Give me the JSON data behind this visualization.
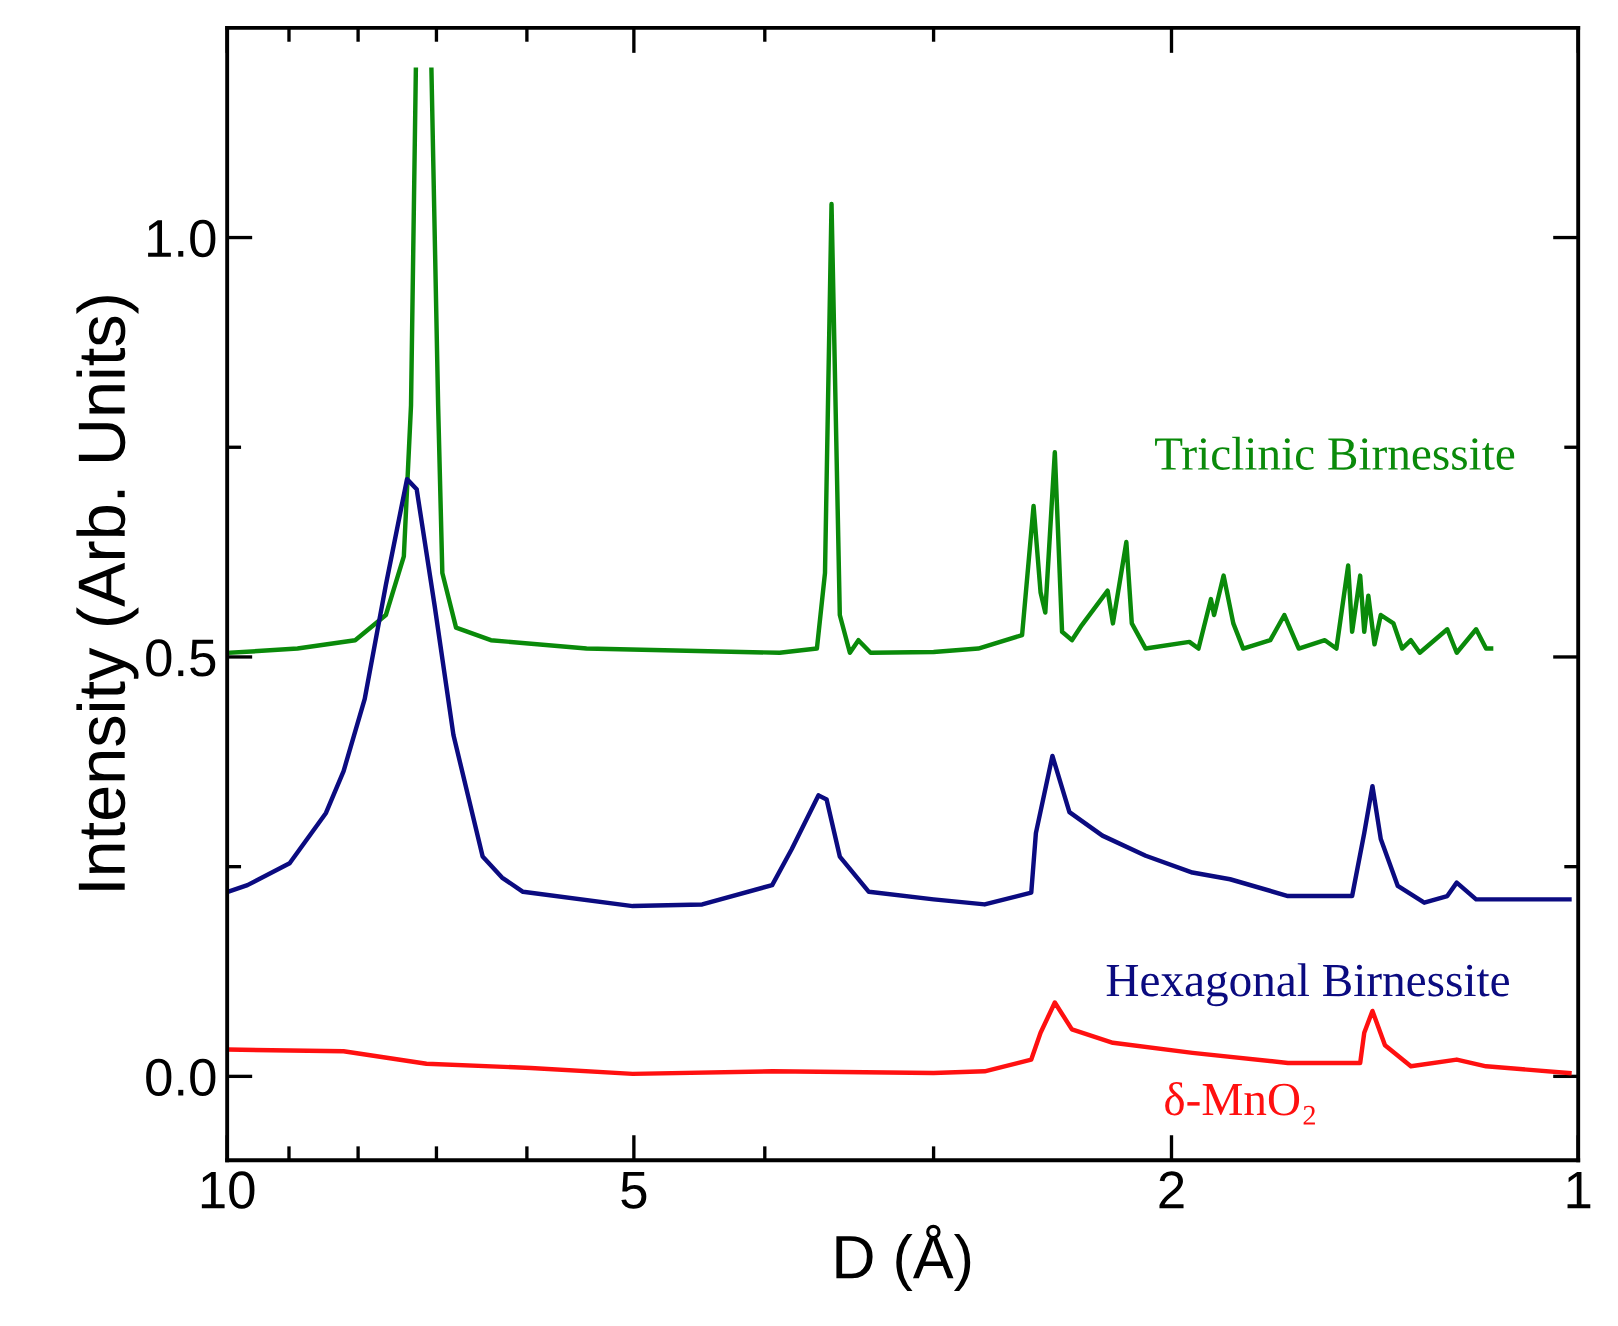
{
  "chart_data": {
    "type": "line",
    "xlabel": "D (Å)",
    "ylabel": "Intensity (Arb. Units)",
    "log": "x",
    "grid": false,
    "legend": false,
    "marker": "none",
    "line_style": "solid",
    "xlim": [
      10,
      1
    ],
    "xticks": [
      10,
      5,
      2,
      1,
      {
        "value": 9,
        "label": null
      },
      {
        "value": 8,
        "label": null
      },
      {
        "value": 7,
        "label": null
      },
      {
        "value": 6,
        "label": null
      },
      {
        "value": 4,
        "label": null
      },
      {
        "value": 3,
        "label": null
      }
    ],
    "ylim": [
      -0.1,
      1.25
    ],
    "yticks": [
      {
        "value": 0,
        "label": "0.0"
      },
      {
        "value": 0.5,
        "label": "0.5"
      },
      {
        "value": 1,
        "label": "1.0"
      },
      {
        "value": 0.25,
        "label": null
      },
      {
        "value": 0.75,
        "label": null
      }
    ],
    "series": [
      {
        "name": "Triclinic Birnessite",
        "color": "#0a8a0a",
        "x": [
          9.95,
          8.87,
          8.04,
          7.63,
          7.4,
          7.31,
          7.25,
          7.16,
          7.06,
          6.98,
          6.93,
          6.77,
          6.38,
          5.42,
          3.9,
          3.66,
          3.61,
          3.57,
          3.52,
          3.46,
          3.41,
          3.34,
          3.0,
          2.78,
          2.58,
          2.53,
          2.5,
          2.48,
          2.44,
          2.41,
          2.37,
          2.33,
          2.23,
          2.21,
          2.16,
          2.14,
          2.09,
          1.94,
          1.91,
          1.87,
          1.86,
          1.83,
          1.8,
          1.77,
          1.69,
          1.65,
          1.61,
          1.54,
          1.51,
          1.48,
          1.47,
          1.45,
          1.44,
          1.43,
          1.415,
          1.4,
          1.37,
          1.35,
          1.33,
          1.31,
          1.25,
          1.23,
          1.19,
          1.17,
          1.16
        ],
        "values": [
          0.505,
          0.51,
          0.52,
          0.55,
          0.62,
          0.8,
          1.2,
          null,
          1.2,
          0.8,
          0.6,
          0.535,
          0.52,
          0.51,
          0.505,
          0.51,
          0.6,
          1.04,
          0.55,
          0.505,
          0.52,
          0.505,
          0.506,
          0.51,
          0.526,
          0.68,
          0.577,
          0.553,
          0.744,
          0.53,
          0.52,
          0.538,
          0.579,
          0.54,
          0.637,
          0.54,
          0.51,
          0.518,
          0.51,
          0.569,
          0.55,
          0.597,
          0.54,
          0.51,
          0.52,
          0.55,
          0.51,
          0.52,
          0.51,
          0.609,
          0.53,
          0.597,
          0.53,
          0.573,
          0.515,
          0.55,
          0.54,
          0.51,
          0.52,
          0.505,
          0.533,
          0.505,
          0.533,
          0.51,
          0.51
        ]
      },
      {
        "name": "Hexagonal Birnessite",
        "color": "#0b0b80",
        "x": [
          9.99,
          9.66,
          8.99,
          8.45,
          8.2,
          7.91,
          7.63,
          7.36,
          7.24,
          7.02,
          6.8,
          6.47,
          6.26,
          6.04,
          5.01,
          4.45,
          3.95,
          3.82,
          3.65,
          3.6,
          3.52,
          3.35,
          3.0,
          2.75,
          2.54,
          2.52,
          2.45,
          2.38,
          2.25,
          2.09,
          1.93,
          1.81,
          1.64,
          1.47,
          1.44,
          1.42,
          1.4,
          1.36,
          1.3,
          1.25,
          1.23,
          1.19,
          1.015
        ],
        "values": [
          0.22,
          0.228,
          0.254,
          0.314,
          0.364,
          0.45,
          0.586,
          0.712,
          0.7,
          0.56,
          0.407,
          0.262,
          0.237,
          0.22,
          0.203,
          0.205,
          0.228,
          0.271,
          0.335,
          0.33,
          0.262,
          0.22,
          0.211,
          0.205,
          0.219,
          0.29,
          0.382,
          0.315,
          0.287,
          0.263,
          0.243,
          0.235,
          0.215,
          0.215,
          0.29,
          0.346,
          0.283,
          0.227,
          0.207,
          0.215,
          0.231,
          0.211,
          0.211
        ]
      },
      {
        "name": "δ-MnO₂",
        "color": "#ff1010",
        "x": [
          9.99,
          8.2,
          7.12,
          5.96,
          5.01,
          3.95,
          3.0,
          2.75,
          2.54,
          2.5,
          2.44,
          2.37,
          2.21,
          1.93,
          1.64,
          1.45,
          1.44,
          1.42,
          1.39,
          1.33,
          1.23,
          1.17,
          1.015
        ],
        "values": [
          0.032,
          0.03,
          0.015,
          0.01,
          0.003,
          0.006,
          0.004,
          0.006,
          0.02,
          0.052,
          0.088,
          0.056,
          0.04,
          0.028,
          0.016,
          0.016,
          0.052,
          0.078,
          0.037,
          0.012,
          0.02,
          0.012,
          0.004
        ]
      }
    ]
  }
}
